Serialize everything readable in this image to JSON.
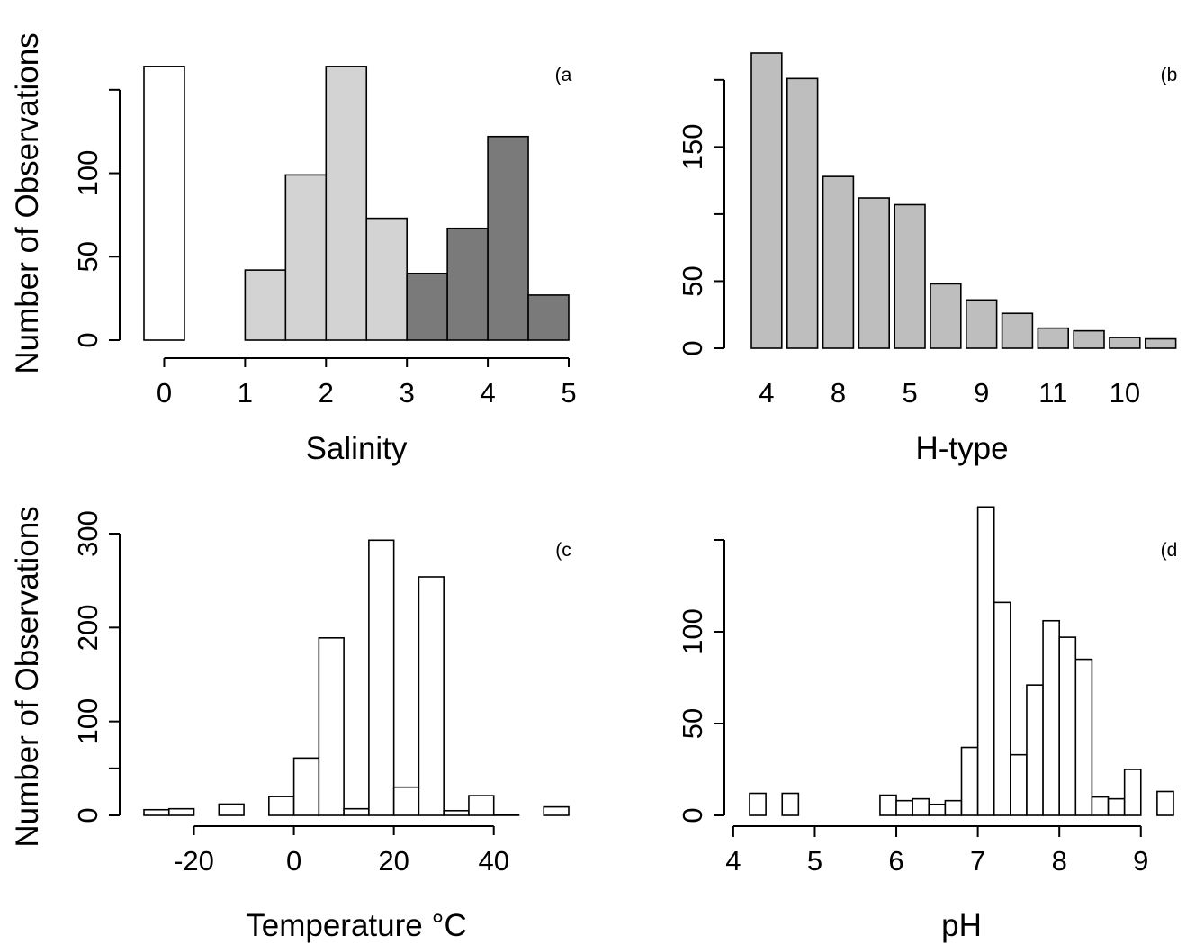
{
  "figure": {
    "ylabel": "Number of Observations"
  },
  "chart_data": [
    {
      "id": "a",
      "type": "bar",
      "tag": "(a",
      "xlabel": "Salinity",
      "ylabel": "Number of Observations",
      "xlim": [
        -0.25,
        5
      ],
      "ylim": [
        0,
        165
      ],
      "xticks": [
        0,
        1,
        2,
        3,
        4,
        5
      ],
      "yticks": [
        0,
        50,
        100,
        150
      ],
      "ytick_labels": [
        "0",
        "50",
        "100",
        ""
      ],
      "bins": [
        {
          "x0": -0.25,
          "x1": 0.25,
          "value": 164,
          "color": "#ffffff"
        },
        {
          "x0": 1.0,
          "x1": 1.5,
          "value": 42,
          "color": "#d3d3d3"
        },
        {
          "x0": 1.5,
          "x1": 2.0,
          "value": 99,
          "color": "#d3d3d3"
        },
        {
          "x0": 2.0,
          "x1": 2.5,
          "value": 164,
          "color": "#d3d3d3"
        },
        {
          "x0": 2.5,
          "x1": 3.0,
          "value": 73,
          "color": "#d3d3d3"
        },
        {
          "x0": 3.0,
          "x1": 3.5,
          "value": 40,
          "color": "#7a7a7a"
        },
        {
          "x0": 3.5,
          "x1": 4.0,
          "value": 67,
          "color": "#7a7a7a"
        },
        {
          "x0": 4.0,
          "x1": 4.5,
          "value": 122,
          "color": "#7a7a7a"
        },
        {
          "x0": 4.5,
          "x1": 5.0,
          "value": 27,
          "color": "#7a7a7a"
        }
      ]
    },
    {
      "id": "b",
      "type": "bar",
      "tag": "(b",
      "xlabel": "H-type",
      "ylabel": "",
      "ylim": [
        0,
        220
      ],
      "yticks": [
        0,
        50,
        100,
        150,
        200
      ],
      "ytick_labels": [
        "0",
        "50",
        "",
        "150",
        ""
      ],
      "bar_color": "#bebebe",
      "categories": [
        "4",
        "",
        "8",
        "",
        "5",
        "",
        "9",
        "",
        "11",
        "",
        "10",
        ""
      ],
      "values": [
        220,
        201,
        128,
        112,
        107,
        48,
        36,
        26,
        15,
        13,
        8,
        7
      ]
    },
    {
      "id": "c",
      "type": "bar",
      "tag": "(c",
      "xlabel": "Temperature °C",
      "ylabel": "Number of Observations",
      "xlim": [
        -30,
        55
      ],
      "ylim": [
        0,
        300
      ],
      "xticks": [
        -20,
        0,
        20,
        40
      ],
      "yticks": [
        0,
        50,
        100,
        200,
        300
      ],
      "ytick_labels": [
        "0",
        "",
        "100",
        "200",
        "300"
      ],
      "bin_width": 5,
      "bin_starts": [
        -30,
        -25,
        -20,
        -15,
        -10,
        -5,
        0,
        5,
        10,
        15,
        20,
        25,
        30,
        35,
        40,
        45,
        50
      ],
      "values": [
        6,
        7,
        0,
        12,
        0,
        20,
        61,
        189,
        7,
        293,
        30,
        254,
        5,
        21,
        1,
        0,
        9
      ]
    },
    {
      "id": "d",
      "type": "bar",
      "tag": "(d",
      "xlabel": "pH",
      "ylabel": "",
      "xlim": [
        4.2,
        9.4
      ],
      "ylim": [
        0,
        150
      ],
      "xticks": [
        4,
        5,
        6,
        7,
        8,
        9
      ],
      "yticks": [
        0,
        50,
        100,
        150
      ],
      "ytick_labels": [
        "0",
        "50",
        "100",
        ""
      ],
      "bin_width": 0.2,
      "bin_starts": [
        4.2,
        4.4,
        4.6,
        4.8,
        5.0,
        5.2,
        5.4,
        5.6,
        5.8,
        6.0,
        6.2,
        6.4,
        6.6,
        6.8,
        7.0,
        7.2,
        7.4,
        7.6,
        7.8,
        8.0,
        8.2,
        8.4,
        8.6,
        8.8,
        9.0,
        9.2
      ],
      "values": [
        12,
        0,
        12,
        0,
        0,
        0,
        0,
        0,
        11,
        8,
        9,
        6,
        8,
        37,
        168,
        116,
        33,
        71,
        106,
        97,
        85,
        10,
        9,
        25,
        0,
        13
      ]
    }
  ]
}
